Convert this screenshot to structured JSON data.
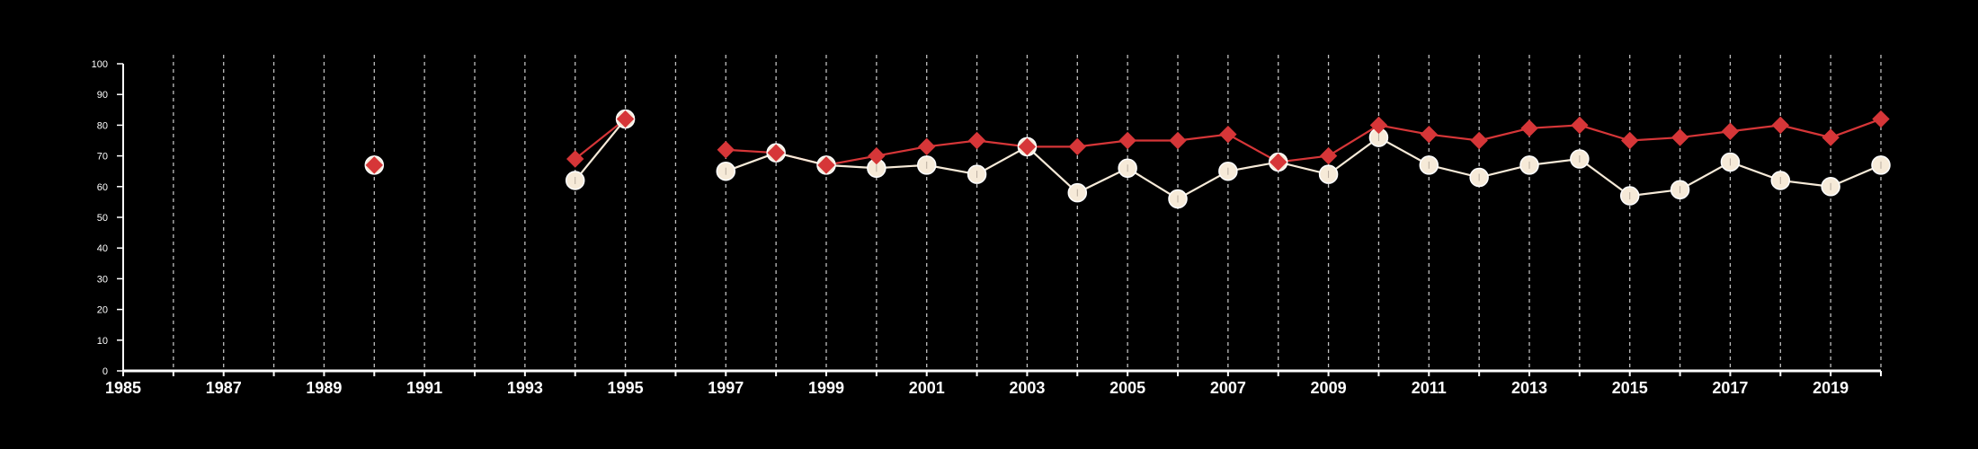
{
  "chart_data": {
    "type": "line",
    "title": "",
    "xlabel": "",
    "ylabel": "",
    "xlim": [
      1985,
      2020
    ],
    "ylim": [
      0,
      100
    ],
    "y_ticks": [
      0,
      10,
      20,
      30,
      40,
      50,
      60,
      70,
      80,
      90,
      100
    ],
    "x_tick_labels": [
      "1985",
      "1987",
      "1989",
      "1991",
      "1993",
      "1995",
      "1997",
      "1999",
      "2001",
      "2003",
      "2005",
      "2007",
      "2009",
      "2011",
      "2013",
      "2015",
      "2017",
      "2019"
    ],
    "grid": "vertical dashed lines at every year",
    "background_color": "#000000",
    "series": [
      {
        "marker": "diamond",
        "color": "#d63638",
        "x": [
          1990,
          1994,
          1995,
          1997,
          1998,
          1999,
          2000,
          2001,
          2002,
          2003,
          2004,
          2005,
          2006,
          2007,
          2008,
          2009,
          2010,
          2011,
          2012,
          2013,
          2014,
          2015,
          2016,
          2017,
          2018,
          2019,
          2020
        ],
        "values": [
          67,
          69,
          82,
          72,
          71,
          67,
          70,
          73,
          75,
          73,
          73,
          75,
          75,
          77,
          68,
          70,
          80,
          77,
          75,
          79,
          80,
          75,
          76,
          78,
          80,
          76,
          82
        ]
      },
      {
        "marker": "circle",
        "color": "#f6ead8",
        "x": [
          1990,
          1994,
          1995,
          1997,
          1998,
          1999,
          2000,
          2001,
          2002,
          2003,
          2004,
          2005,
          2006,
          2007,
          2008,
          2009,
          2010,
          2011,
          2012,
          2013,
          2014,
          2015,
          2016,
          2017,
          2018,
          2019,
          2020
        ],
        "values": [
          67,
          62,
          82,
          65,
          71,
          67,
          66,
          67,
          64,
          73,
          58,
          66,
          56,
          65,
          68,
          64,
          76,
          67,
          63,
          67,
          69,
          57,
          59,
          68,
          62,
          60,
          67
        ]
      }
    ]
  }
}
